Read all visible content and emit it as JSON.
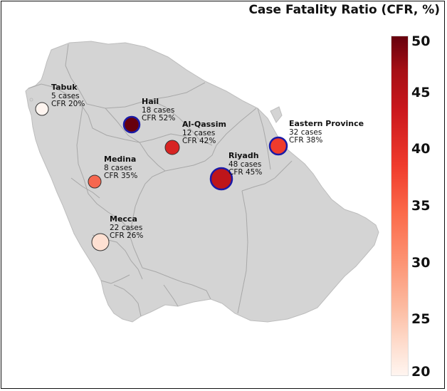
{
  "colorbar": {
    "title": "Case Fatality Ratio (CFR, %)",
    "ticks": [
      {
        "label": "50",
        "value": 50
      },
      {
        "label": "45",
        "value": 45
      },
      {
        "label": "40",
        "value": 40
      },
      {
        "label": "35",
        "value": 35
      },
      {
        "label": "30",
        "value": 30
      },
      {
        "label": "25",
        "value": 25
      },
      {
        "label": "20",
        "value": 20
      }
    ],
    "min": 20,
    "max": 50,
    "colors": {
      "low": "#fff5f0",
      "high": "#67000d"
    }
  },
  "map": {
    "region": "Saudi Arabia",
    "land_color": "#d4d4d4",
    "border_color": "#a8a8a8",
    "highlight_ring_color": "#1a1aa6"
  },
  "cities": [
    {
      "name": "Tabuk",
      "cases_text": "5 cases",
      "cfr_text": "CFR 20%",
      "cases": 5,
      "cfr": 20,
      "highlighted": false
    },
    {
      "name": "Hail",
      "cases_text": "18 cases",
      "cfr_text": "CFR 52%",
      "cases": 18,
      "cfr": 52,
      "highlighted": true
    },
    {
      "name": "Al-Qassim",
      "cases_text": "12 cases",
      "cfr_text": "CFR 42%",
      "cases": 12,
      "cfr": 42,
      "highlighted": false
    },
    {
      "name": "Eastern Province",
      "cases_text": "32 cases",
      "cfr_text": "CFR 38%",
      "cases": 32,
      "cfr": 38,
      "highlighted": true
    },
    {
      "name": "Medina",
      "cases_text": "8 cases",
      "cfr_text": "CFR 35%",
      "cases": 8,
      "cfr": 35,
      "highlighted": false
    },
    {
      "name": "Riyadh",
      "cases_text": "48 cases",
      "cfr_text": "CFR 45%",
      "cases": 48,
      "cfr": 45,
      "highlighted": true
    },
    {
      "name": "Mecca",
      "cases_text": "22 cases",
      "cfr_text": "CFR 26%",
      "cases": 22,
      "cfr": 26,
      "highlighted": false
    }
  ]
}
